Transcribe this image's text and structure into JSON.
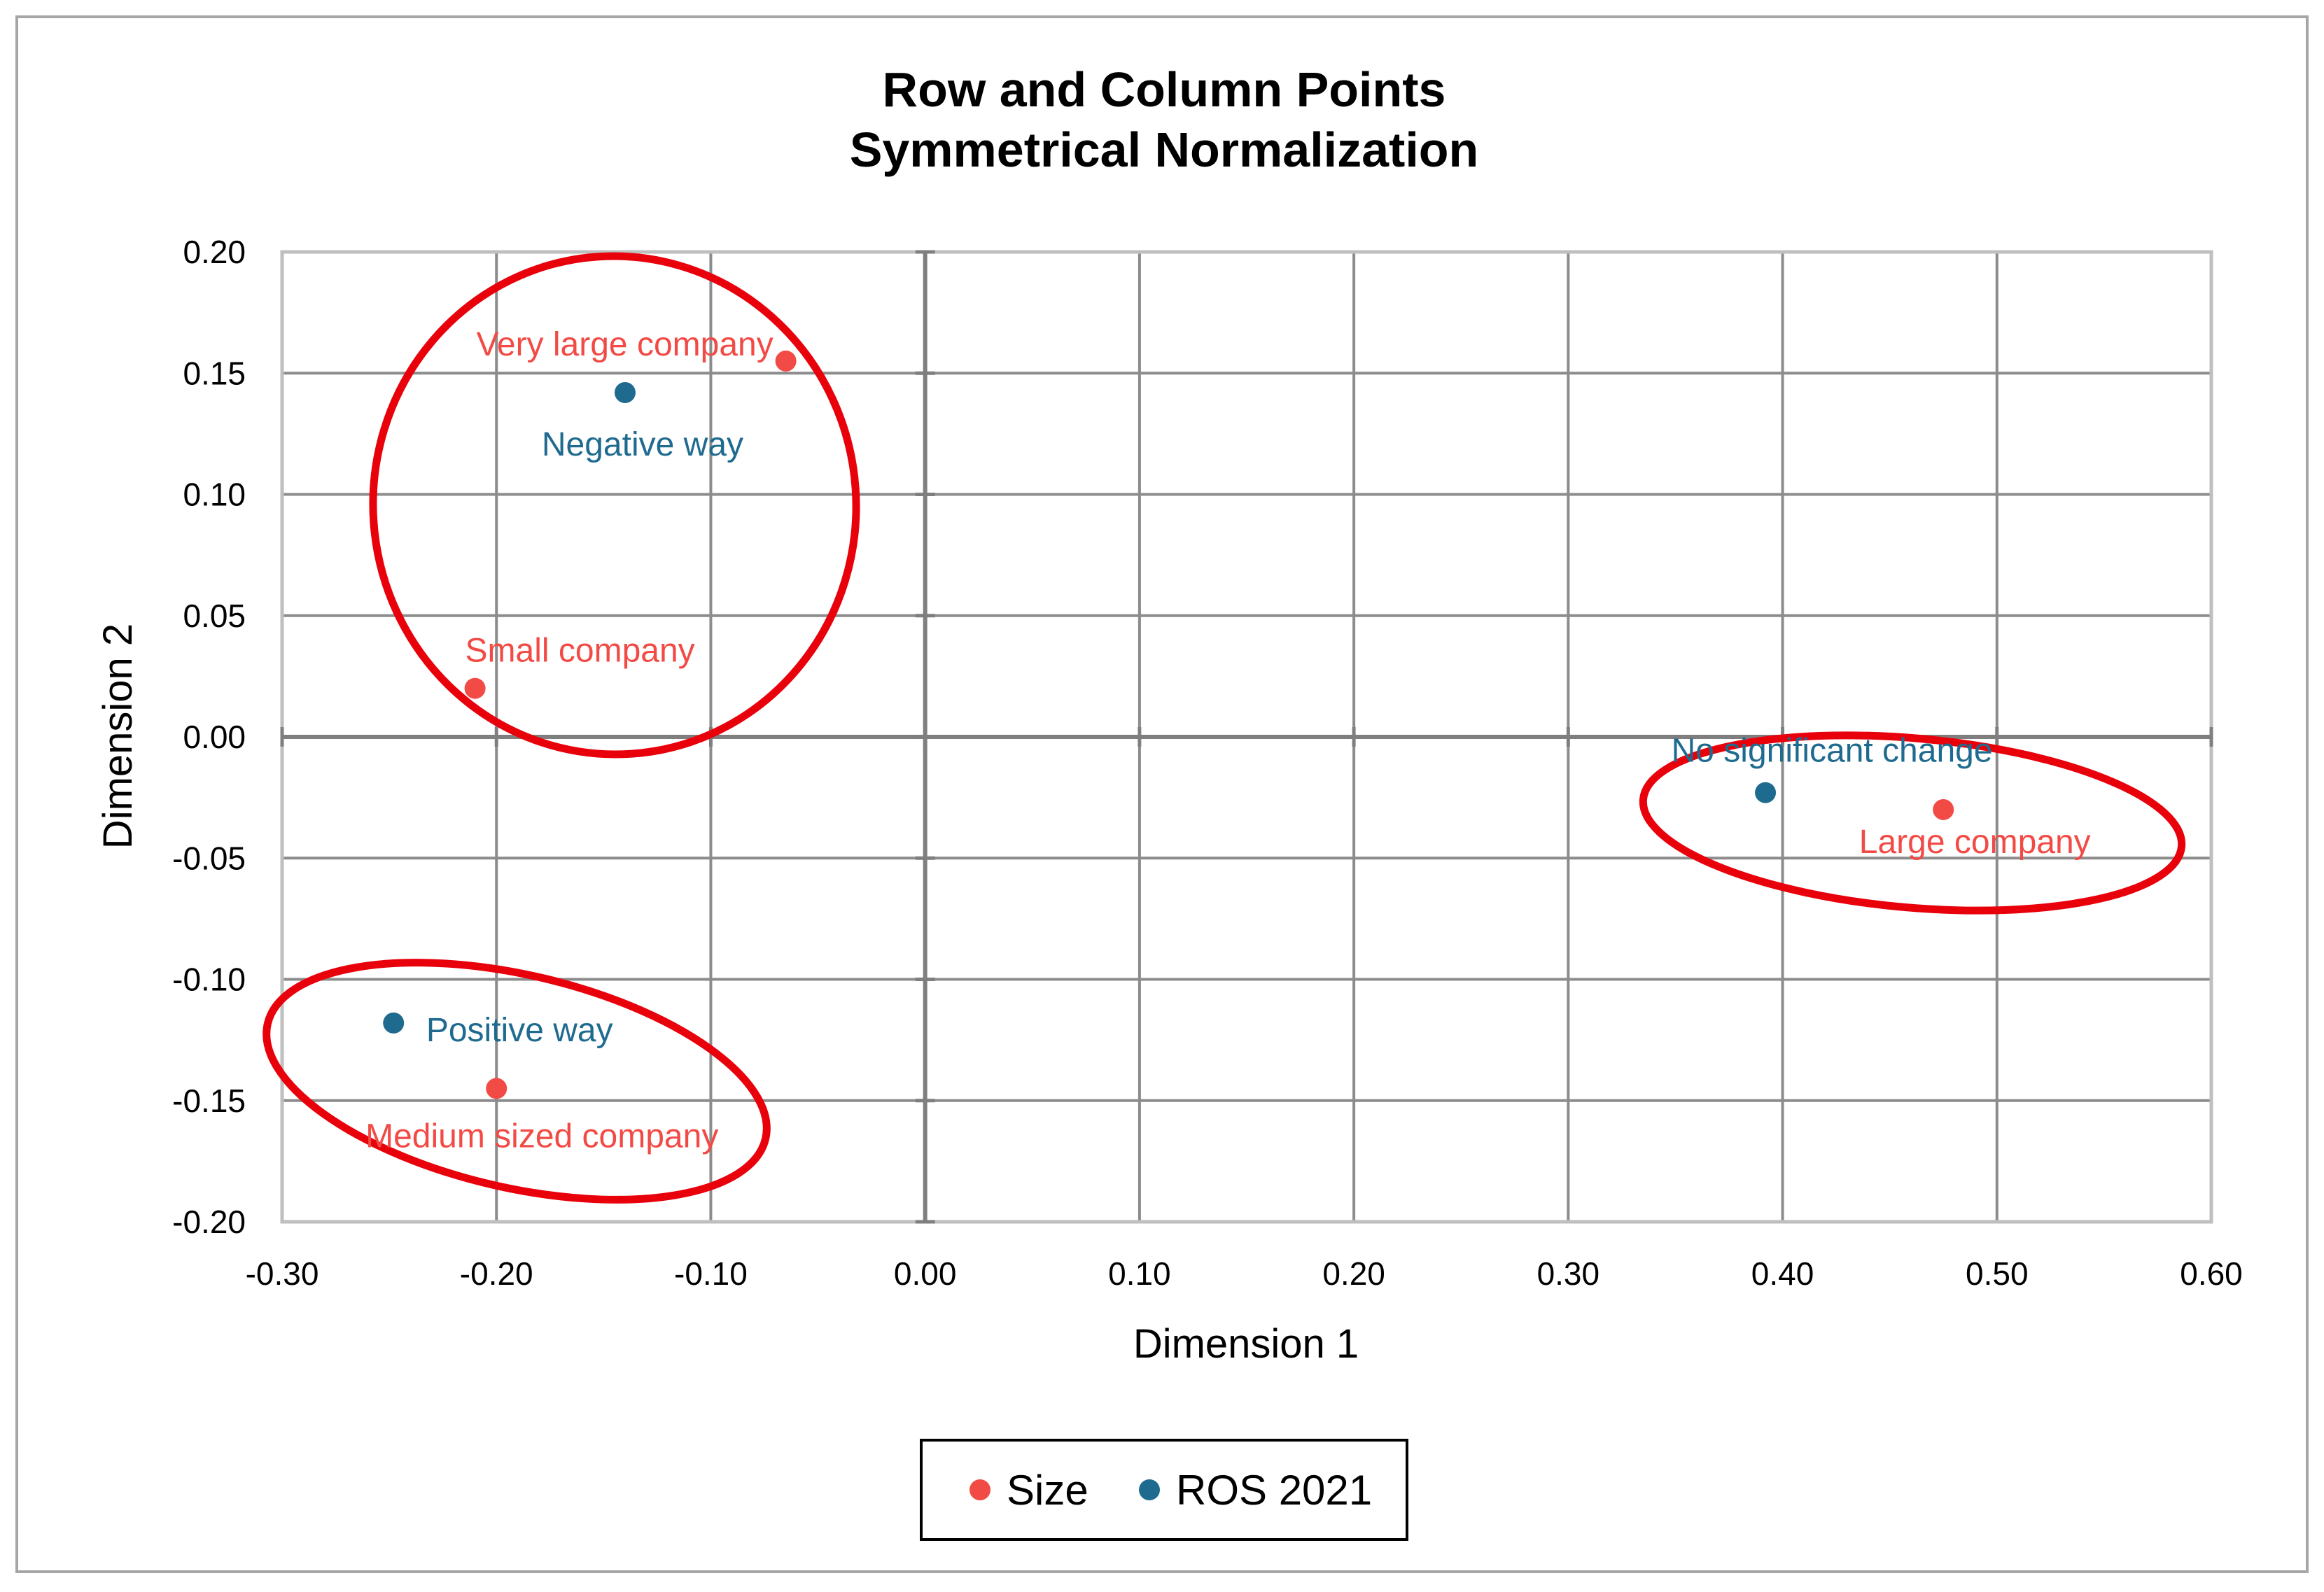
{
  "chart_data": {
    "type": "scatter",
    "title": "Row and Column Points",
    "subtitle": "Symmetrical Normalization",
    "xlabel": "Dimension 1",
    "ylabel": "Dimension 2",
    "xlim": [
      -0.3,
      0.6
    ],
    "ylim": [
      -0.2,
      0.2
    ],
    "xticks": [
      "-0.30",
      "-0.20",
      "-0.10",
      "0.00",
      "0.10",
      "0.20",
      "0.30",
      "0.40",
      "0.50",
      "0.60"
    ],
    "yticks": [
      "0.20",
      "0.15",
      "0.10",
      "0.05",
      "0.00",
      "-0.05",
      "-0.10",
      "-0.15",
      "-0.20"
    ],
    "grid": true,
    "legend_position": "bottom",
    "series": [
      {
        "name": "Size",
        "color": "#f24a45",
        "points": [
          {
            "label": "Very large company",
            "x": -0.065,
            "y": 0.155
          },
          {
            "label": "Small company",
            "x": -0.21,
            "y": 0.02
          },
          {
            "label": "Large company",
            "x": 0.475,
            "y": -0.03
          },
          {
            "label": "Medium sized company",
            "x": -0.2,
            "y": -0.145
          }
        ]
      },
      {
        "name": "ROS 2021",
        "color": "#1f6b8f",
        "points": [
          {
            "label": "Negative way",
            "x": -0.14,
            "y": 0.142
          },
          {
            "label": "No significant change",
            "x": 0.392,
            "y": -0.023
          },
          {
            "label": "Positive way",
            "x": -0.248,
            "y": -0.118
          }
        ]
      }
    ],
    "annotations": {
      "type": "hand-drawn ellipse",
      "color": "#e8000b",
      "count": 3
    }
  }
}
